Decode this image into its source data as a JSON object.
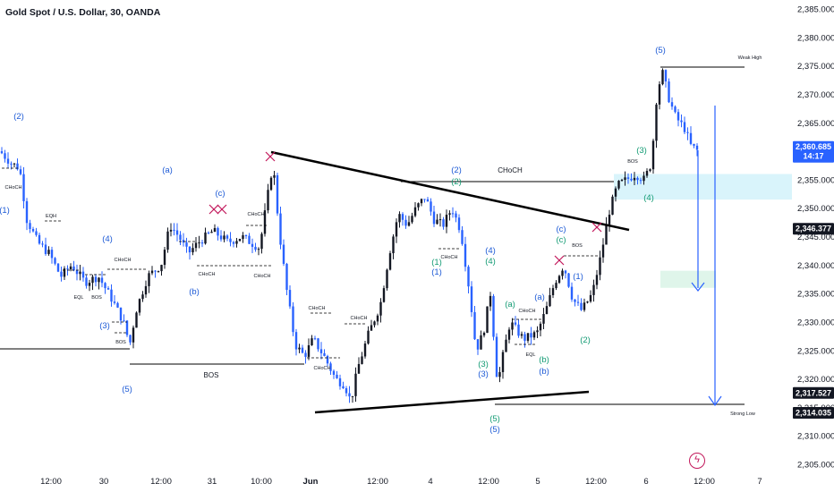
{
  "header": {
    "title": "Gold Spot / U.S. Dollar, 30, OANDA"
  },
  "toolbar": {
    "flash_icon": "lightning-icon"
  },
  "chart_data": {
    "type": "candlestick",
    "y_axis": {
      "ticks": [
        "2,385.000",
        "2,380.000",
        "2,375.000",
        "2,370.000",
        "2,365.000",
        "2,360.000",
        "2,355.000",
        "2,350.000",
        "2,345.000",
        "2,340.000",
        "2,335.000",
        "2,330.000",
        "2,325.000",
        "2,320.000",
        "2,315.000",
        "2,310.000",
        "2,305.000"
      ],
      "tick_values": [
        2385,
        2380,
        2375,
        2370,
        2365,
        2360,
        2355,
        2350,
        2345,
        2340,
        2335,
        2330,
        2325,
        2320,
        2315,
        2310,
        2305
      ],
      "range": [
        2304,
        2387
      ]
    },
    "x_axis": {
      "labels": [
        "12:00",
        "30",
        "12:00",
        "31",
        "10:00",
        "Jun",
        "12:00",
        "4",
        "12:00",
        "5",
        "12:00",
        "6",
        "12:00",
        "7"
      ]
    },
    "price_tags": [
      {
        "value": "2,360.685",
        "sub": "14:17",
        "price": 2360.685,
        "color": "#2962ff"
      },
      {
        "value": "2,346.377",
        "price": 2346.377,
        "color": "#131722"
      },
      {
        "value": "2,317.527",
        "price": 2317.527,
        "color": "#131722"
      },
      {
        "value": "2,314.035",
        "price": 2314.035,
        "color": "#131722"
      }
    ],
    "annotations": {
      "bos": "BOS",
      "choch": "CHoCH",
      "weak_high": "Weak High",
      "strong_low": "Strong Low",
      "eqh": "EQH",
      "eql": "EQL",
      "wave_labels_blue": [
        "(2)",
        "(1)",
        "(a)",
        "(c)",
        "(4)",
        "(3)",
        "(5)",
        "(b)",
        "(2)",
        "(1)",
        "(4)",
        "(3)",
        "(5)",
        "(c)",
        "(a)",
        "(b)",
        "(1)",
        "(5)"
      ],
      "wave_labels_teal": [
        "(2)",
        "(1)",
        "(4)",
        "(c)",
        "(a)",
        "(3)",
        "(b)",
        "(5)",
        "(4)",
        "(3)",
        "(2)",
        "(5)"
      ]
    },
    "zones": [
      {
        "name": "supply-zone",
        "from": 2351.5,
        "to": 2356.0,
        "color": "#d9f4fb"
      },
      {
        "name": "target-zone",
        "from": 2336.0,
        "to": 2339.0,
        "color": "#dff5ea"
      }
    ]
  }
}
